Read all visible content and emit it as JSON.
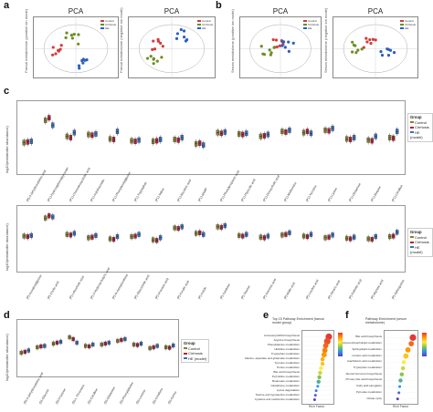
{
  "panels": {
    "a": "a",
    "b": "b",
    "c": "c",
    "d": "d",
    "e": "e",
    "f": "f"
  },
  "pca": [
    {
      "title": "PCA",
      "ylabel": "Faecal metabolome (positive ion mode)",
      "legend": [
        "Control",
        "Cirrhosis",
        "HE"
      ],
      "colors": [
        "#d33b3b",
        "#6b8e23",
        "#2c5fbf"
      ]
    },
    {
      "title": "PCA",
      "ylabel": "Faecal metabolome (negative ion mode)",
      "legend": [
        "Control",
        "Cirrhosis",
        "HE"
      ],
      "colors": [
        "#d33b3b",
        "#6b8e23",
        "#2c5fbf"
      ]
    },
    {
      "title": "PCA",
      "ylabel": "Serum metabolome (positive ion mode)",
      "legend": [
        "Control",
        "Cirrhosis",
        "HE"
      ],
      "colors": [
        "#d33b3b",
        "#6b8e23",
        "#2c5fbf"
      ]
    },
    {
      "title": "PCA",
      "ylabel": "Serum metabolome (negative ion mode)",
      "legend": [
        "Control",
        "Cirrhosis",
        "HE"
      ],
      "colors": [
        "#d33b3b",
        "#6b8e23",
        "#2c5fbf"
      ]
    }
  ],
  "group_colors": {
    "Control": "#8b7d2b",
    "Cirrhosis": "#b0233a",
    "HE": "#3a6fc0"
  },
  "chart_data": [
    {
      "type": "box",
      "ylabel": "log10(metabolite abundance)",
      "legend_title": "Group",
      "legend": [
        "Control",
        "Cirrhosis",
        "HE (model)"
      ],
      "categories": [
        "(R)-3-dehydroxyluteic acid",
        "(P1)-Hydroxyphenylpyruvate",
        "(P1)-Chenodeoxycholic acid",
        "(P1)-Indoleacetate",
        "(P1)-Phenylacetylglycine",
        "(P1)-Tryptophan",
        "(P1)-Valine",
        "(P1)-Nicotinic acid",
        "(P1)-dAMP",
        "(P1)-Phenylpropionic acid",
        "(P1)-Pipecolic acid",
        "(P1)-Deoxycholic acid",
        "(P1)-Methionine",
        "(P1)-Tyrosine",
        "(P1)-Lysine",
        "(P1)-Glutamine",
        "(P1)-Betaine",
        "(P1)-Citrulline"
      ],
      "values_control": [
        0.42,
        0.78,
        0.52,
        0.55,
        0.48,
        0.45,
        0.44,
        0.47,
        0.4,
        0.58,
        0.56,
        0.52,
        0.6,
        0.58,
        0.62,
        0.48,
        0.46,
        0.5
      ],
      "values_cirrhosis": [
        0.43,
        0.82,
        0.5,
        0.54,
        0.47,
        0.44,
        0.45,
        0.46,
        0.41,
        0.57,
        0.55,
        0.53,
        0.59,
        0.6,
        0.61,
        0.47,
        0.45,
        0.49
      ],
      "values_he": [
        0.44,
        0.7,
        0.58,
        0.56,
        0.6,
        0.46,
        0.47,
        0.5,
        0.38,
        0.59,
        0.57,
        0.55,
        0.62,
        0.57,
        0.65,
        0.5,
        0.52,
        0.6
      ],
      "ylim": [
        0,
        1
      ]
    },
    {
      "type": "box",
      "ylabel": "log10(metabolite abundance)",
      "legend_title": "Group",
      "legend": [
        "Control",
        "Cirrhosis",
        "HE (model)"
      ],
      "categories": [
        "(P)-Isovalerylglycine",
        "(P)-Cholic acid",
        "(P)-Lithocholic acid",
        "(P)-3-Hydroxy-butyric acid",
        "(P)-N-Acetylornithine",
        "(P)-Glycocholic acid",
        "(P)-Urocanic acid",
        "(P)-Ferulic acid",
        "(P)-Indole",
        "(P)-Xanthine",
        "(P)-Taurine",
        "(P)-Succinic acid",
        "(P)-Malic acid",
        "(P)-Linoleic acid",
        "(P)-Stearic acid",
        "(P)-Palmitic acid",
        "(P)-Myristic acid",
        "(P)-Sphingosine"
      ],
      "values_control": [
        0.55,
        0.88,
        0.58,
        0.52,
        0.5,
        0.54,
        0.48,
        0.7,
        0.6,
        0.72,
        0.56,
        0.53,
        0.57,
        0.55,
        0.52,
        0.51,
        0.5,
        0.54
      ],
      "values_cirrhosis": [
        0.54,
        0.92,
        0.57,
        0.53,
        0.49,
        0.55,
        0.47,
        0.69,
        0.61,
        0.71,
        0.55,
        0.52,
        0.58,
        0.54,
        0.53,
        0.5,
        0.49,
        0.55
      ],
      "values_he": [
        0.56,
        0.9,
        0.6,
        0.56,
        0.54,
        0.58,
        0.52,
        0.72,
        0.58,
        0.74,
        0.58,
        0.55,
        0.61,
        0.58,
        0.57,
        0.53,
        0.54,
        0.62
      ],
      "ylim": [
        0,
        1
      ]
    },
    {
      "type": "box",
      "ylabel": "log10(metabolite abundance)",
      "legend_title": "Group",
      "legend": [
        "Control",
        "Cirrhosis",
        "HE (model)"
      ],
      "categories": [
        "(R)-3-dehydroxyluteic acid",
        "(D)-Glucose",
        "(D)-Fructose",
        "(D)-L-Threonine",
        "(D)-Citrulline",
        "(D)-Glutamine",
        "(D)-Phenylalanine",
        "(D)-Leucine",
        "(D)-Ornithine",
        "(D)-Serine"
      ],
      "values_control": [
        0.4,
        0.52,
        0.6,
        0.74,
        0.55,
        0.58,
        0.66,
        0.58,
        0.5,
        0.52
      ],
      "values_cirrhosis": [
        0.42,
        0.54,
        0.62,
        0.7,
        0.54,
        0.6,
        0.68,
        0.57,
        0.52,
        0.51
      ],
      "values_he": [
        0.45,
        0.55,
        0.64,
        0.62,
        0.58,
        0.62,
        0.7,
        0.6,
        0.55,
        0.56
      ],
      "ylim": [
        0,
        1
      ]
    },
    {
      "type": "scatter",
      "title": "Top 15 Pathway Enrichment (faecal model group)",
      "xlabel": "Rich Factor",
      "pathways": [
        "Aminoacyl-tRNA biosynthesis",
        "Arginine biosynthesis",
        "Phenylalanine metabolism",
        "Histidine metabolism",
        "Tryptophan metabolism",
        "Alanine, aspartate and glutamate metabolism",
        "Tyrosine metabolism",
        "Purine metabolism",
        "Bile acid biosynthesis",
        "Pyrimidine metabolism",
        "Butanoate metabolism",
        "Glutathione metabolism",
        "Lysine degradation",
        "Taurine and hypotaurine metabolism",
        "Cysteine and methionine metabolism"
      ],
      "rich_factor": [
        0.3,
        0.28,
        0.26,
        0.25,
        0.24,
        0.22,
        0.22,
        0.2,
        0.19,
        0.18,
        0.17,
        0.16,
        0.14,
        0.13,
        0.12
      ],
      "size": [
        4,
        4,
        3,
        3,
        3,
        2,
        2,
        2,
        2,
        2,
        2,
        1,
        1,
        1,
        1
      ],
      "pvalue_rank": [
        0,
        0.05,
        0.1,
        0.15,
        0.2,
        0.25,
        0.3,
        0.4,
        0.5,
        0.6,
        0.7,
        0.8,
        0.85,
        0.9,
        1.0
      ]
    },
    {
      "type": "scatter",
      "title": "Pathway Enrichment (serum metabolome)",
      "xlabel": "Rich Factor",
      "pathways": [
        "Bile acid biosynthesis",
        "Glycerophospholipid metabolism",
        "Sphingolipid metabolism",
        "Linoleic acid metabolism",
        "Arachidonic acid metabolism",
        "Tryptophan metabolism",
        "Steroid hormone biosynthesis",
        "Primary bile acid biosynthesis",
        "Fatty acid elongation",
        "Pyruvate metabolism",
        "Citrate cycle"
      ],
      "rich_factor": [
        0.62,
        0.58,
        0.5,
        0.45,
        0.4,
        0.38,
        0.35,
        0.32,
        0.3,
        0.28,
        0.25
      ],
      "size": [
        4,
        3,
        3,
        3,
        2,
        2,
        2,
        2,
        1,
        1,
        1
      ],
      "pvalue_rank": [
        0,
        0.1,
        0.2,
        0.3,
        0.4,
        0.5,
        0.6,
        0.7,
        0.8,
        0.9,
        1.0
      ]
    }
  ]
}
